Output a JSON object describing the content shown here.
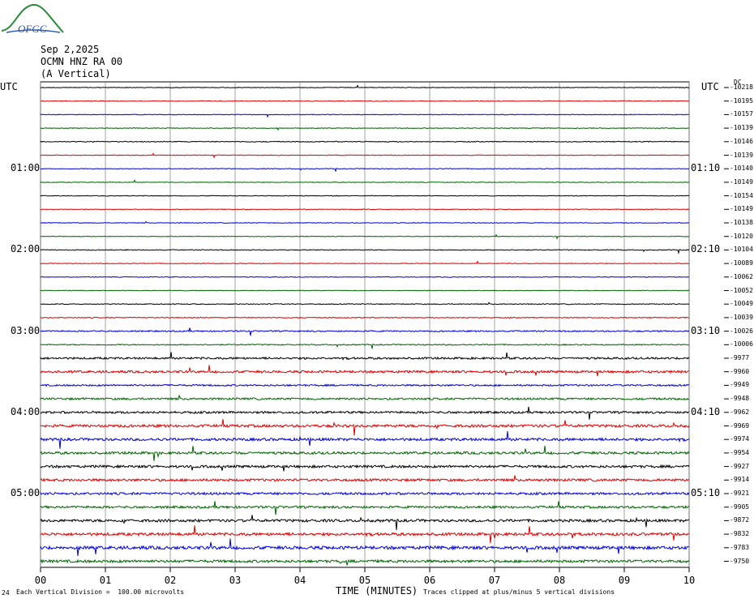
{
  "logo": {
    "text": "OFGC",
    "icon": "ofgc-logo-wave-icon"
  },
  "header": {
    "date": "Sep 2,2025",
    "station": "OCMN HNZ RA 00",
    "component": "(A Vertical)"
  },
  "utc_left": "UTC",
  "utc_right": "UTC",
  "dc_header": "DC",
  "footer": {
    "scale": "Each Vertical Division =  100.00 microvolts",
    "xlabel": "TIME (MINUTES)",
    "clip_note": "Traces clipped at plus/minus 5 vertical divisions",
    "corner": "24"
  },
  "colors": {
    "black": "#000000",
    "red": "#dd0000",
    "blue": "#0000dd",
    "green": "#006600",
    "grid": "#8c8c8c"
  },
  "chart_data": {
    "type": "line",
    "title": "Sep 2,2025 OCMN HNZ RA 00 (A Vertical)",
    "xlabel": "TIME (MINUTES)",
    "xlim": [
      0,
      10
    ],
    "x_ticks": [
      "00",
      "01",
      "02",
      "03",
      "04",
      "05",
      "06",
      "07",
      "08",
      "09",
      "10"
    ],
    "left_time_labels": [
      {
        "row": 6,
        "label": "01:00"
      },
      {
        "row": 12,
        "label": "02:00"
      },
      {
        "row": 18,
        "label": "03:00"
      },
      {
        "row": 24,
        "label": "04:00"
      },
      {
        "row": 30,
        "label": "05:00"
      }
    ],
    "right_time_labels": [
      {
        "row": 6,
        "label": "01:10"
      },
      {
        "row": 12,
        "label": "02:10"
      },
      {
        "row": 18,
        "label": "03:10"
      },
      {
        "row": 24,
        "label": "04:10"
      },
      {
        "row": 30,
        "label": "05:10"
      }
    ],
    "trace_color_cycle": [
      "black",
      "red",
      "blue",
      "green"
    ],
    "dc_offsets": [
      -10218,
      -10195,
      -10157,
      -10139,
      -10146,
      -10139,
      -10140,
      -10149,
      -10154,
      -10149,
      -10138,
      -10120,
      -10104,
      -10089,
      -10062,
      -10052,
      -10049,
      -10039,
      -10026,
      -10006,
      -9977,
      -9960,
      -9949,
      -9948,
      -9962,
      -9969,
      -9974,
      -9954,
      -9927,
      -9914,
      -9921,
      -9905,
      -9872,
      -9832,
      -9783,
      -9750
    ],
    "trace_noise_level": [
      0.4,
      0.4,
      0.4,
      0.4,
      0.5,
      0.4,
      0.4,
      0.4,
      0.4,
      0.4,
      0.4,
      0.4,
      0.5,
      0.4,
      0.4,
      0.4,
      0.5,
      0.5,
      0.8,
      0.7,
      1.2,
      1.4,
      1.0,
      1.2,
      1.3,
      1.6,
      1.6,
      1.5,
      1.5,
      1.5,
      1.4,
      1.4,
      1.6,
      1.7,
      1.9,
      1.6
    ],
    "grid": true
  }
}
